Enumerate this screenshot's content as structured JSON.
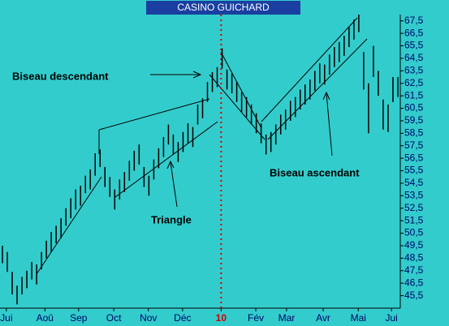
{
  "chart_data": {
    "type": "hl-bar",
    "title": "CASINO GUICHARD",
    "color": "#000000",
    "annotations": [
      "Biseau descendant",
      "Triangle",
      "Biseau ascendant"
    ],
    "high": [
      49.5,
      49.0,
      47.4,
      46.3,
      47.0,
      47.5,
      48.2,
      48.0,
      49.0,
      49.9,
      50.6,
      51.1,
      51.7,
      52.5,
      53.3,
      54.0,
      54.3,
      55.1,
      55.6,
      56.9,
      57.2,
      55.8,
      55.0,
      54.0,
      54.8,
      55.4,
      56.3,
      57.1,
      57.6,
      55.8,
      55.1,
      56.4,
      57.3,
      58.2,
      59.2,
      58.4,
      57.8,
      58.6,
      59.3,
      59.0,
      60.8,
      61.3,
      62.6,
      63.4,
      63.8,
      65.3,
      63.6,
      63.3,
      62.6,
      61.8,
      61.4,
      60.8,
      60.1,
      59.3,
      58.4,
      58.6,
      59.2,
      60.0,
      60.4,
      61.1,
      61.4,
      62.0,
      62.4,
      62.8,
      63.5,
      64.1,
      64.0,
      64.8,
      65.4,
      65.8,
      66.3,
      67.0,
      67.6,
      68.0,
      65.0,
      62.5,
      65.5,
      63.5,
      61.2,
      60.8,
      63.0,
      63.0
    ],
    "low": [
      48.1,
      47.4,
      45.6,
      44.8,
      45.6,
      46.1,
      46.8,
      46.4,
      47.6,
      48.5,
      49.0,
      49.7,
      50.1,
      51.1,
      51.7,
      52.4,
      52.7,
      53.7,
      54.0,
      55.1,
      55.8,
      54.2,
      53.4,
      52.4,
      53.2,
      53.8,
      54.7,
      55.5,
      56.0,
      54.2,
      53.5,
      54.8,
      55.7,
      56.6,
      57.6,
      56.8,
      56.2,
      57.0,
      57.7,
      57.4,
      59.2,
      59.7,
      61.0,
      61.8,
      62.2,
      63.7,
      62.0,
      61.7,
      61.0,
      60.2,
      59.8,
      59.2,
      58.5,
      57.7,
      56.8,
      57.0,
      57.6,
      58.4,
      58.8,
      59.5,
      59.8,
      60.4,
      60.8,
      61.2,
      61.9,
      62.5,
      62.4,
      63.2,
      63.8,
      64.2,
      64.7,
      65.4,
      66.0,
      66.6,
      62.0,
      58.5,
      63.0,
      61.5,
      58.8,
      58.6,
      61.0,
      61.4
    ],
    "xlim": [
      0,
      82
    ],
    "xticks": [
      {
        "value": 1.3,
        "label": "Jui"
      },
      {
        "value": 9.2,
        "label": "Aoû"
      },
      {
        "value": 16.1,
        "label": "Sep"
      },
      {
        "value": 23.3,
        "label": "Oct"
      },
      {
        "value": 30.4,
        "label": "Nov"
      },
      {
        "value": 37.4,
        "label": "Déc"
      },
      {
        "value": 45.3,
        "label": "10",
        "color": "#cc0000"
      },
      {
        "value": 52.4,
        "label": "Fév"
      },
      {
        "value": 58.7,
        "label": "Mar"
      },
      {
        "value": 66.2,
        "label": "Avr"
      },
      {
        "value": 73.4,
        "label": "Mai"
      },
      {
        "value": 80.2,
        "label": "Jui"
      }
    ],
    "ylim": [
      44.5,
      68
    ],
    "yticks": [
      {
        "value": 45.5,
        "label": "45,5"
      },
      {
        "value": 46.5,
        "label": "46,5"
      },
      {
        "value": 47.5,
        "label": "47,5"
      },
      {
        "value": 48.5,
        "label": "48,5"
      },
      {
        "value": 49.5,
        "label": "49,5"
      },
      {
        "value": 50.5,
        "label": "50,5"
      },
      {
        "value": 51.5,
        "label": "51,5"
      },
      {
        "value": 52.5,
        "label": "52,5"
      },
      {
        "value": 53.5,
        "label": "53,5"
      },
      {
        "value": 54.5,
        "label": "54,5"
      },
      {
        "value": 55.5,
        "label": "55,5"
      },
      {
        "value": 56.5,
        "label": "56,5"
      },
      {
        "value": 57.5,
        "label": "57,5"
      },
      {
        "value": 58.5,
        "label": "58,5"
      },
      {
        "value": 59.5,
        "label": "59,5"
      },
      {
        "value": 60.5,
        "label": "60,5"
      },
      {
        "value": 61.5,
        "label": "61,5"
      },
      {
        "value": 62.5,
        "label": "62,5"
      },
      {
        "value": 63.5,
        "label": "63,5"
      },
      {
        "value": 64.5,
        "label": "64,5"
      },
      {
        "value": 65.5,
        "label": "65,5"
      },
      {
        "value": 66.5,
        "label": "66,5"
      },
      {
        "value": 67.5,
        "label": "67,5"
      }
    ]
  }
}
